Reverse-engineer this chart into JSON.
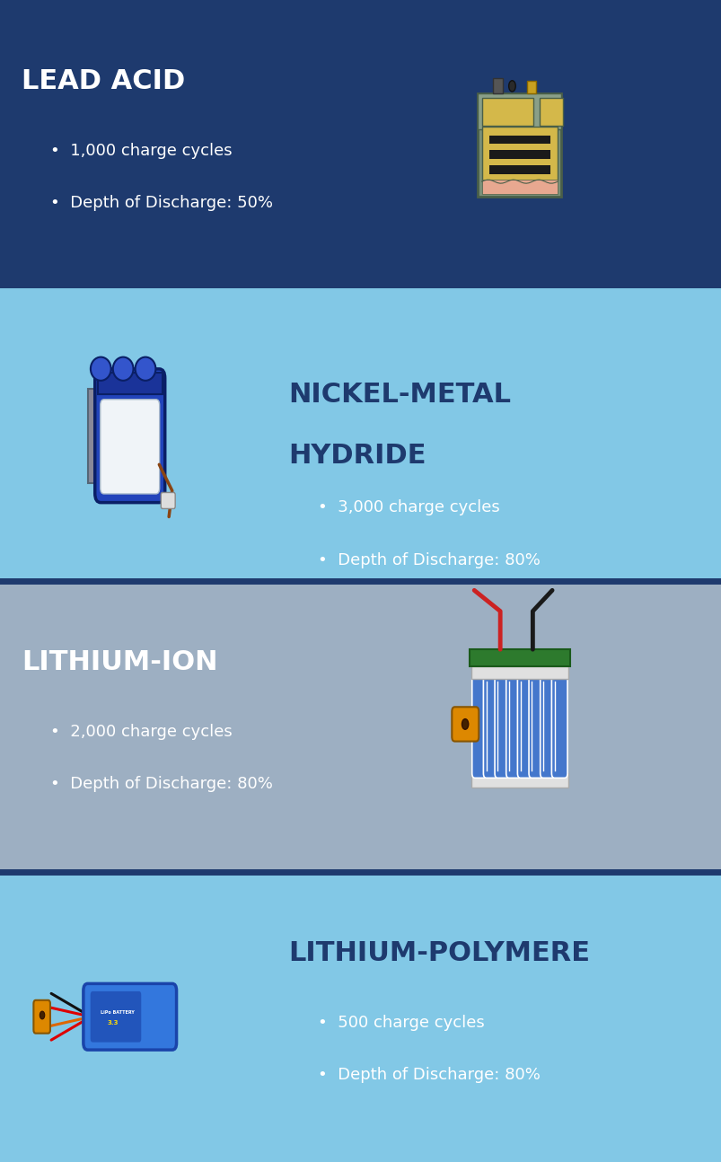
{
  "sections": [
    {
      "title": "LEAD ACID",
      "bullet1": "1,000 charge cycles",
      "bullet2": "Depth of Discharge: 50%",
      "bg_color": "#1e3a6e",
      "title_color": "#ffffff",
      "text_color": "#ffffff",
      "title_side": "left",
      "image_side": "right"
    },
    {
      "title": "NICKEL-METAL\nHYDRIDE",
      "bullet1": "3,000 charge cycles",
      "bullet2": "Depth of Discharge: 80%",
      "bg_color": "#82c8e6",
      "title_color": "#1e3a6e",
      "text_color": "#ffffff",
      "title_side": "right",
      "image_side": "left"
    },
    {
      "title": "LITHIUM-ION",
      "bullet1": "2,000 charge cycles",
      "bullet2": "Depth of Discharge: 80%",
      "bg_color": "#9dafc2",
      "title_color": "#ffffff",
      "text_color": "#ffffff",
      "title_side": "left",
      "image_side": "right"
    },
    {
      "title": "LITHIUM-POLYMERE",
      "bullet1": "500 charge cycles",
      "bullet2": "Depth of Discharge: 80%",
      "bg_color": "#82c8e6",
      "title_color": "#1e3a6e",
      "text_color": "#ffffff",
      "title_side": "right",
      "image_side": "left"
    }
  ],
  "fig_width": 8.04,
  "fig_height": 12.94
}
